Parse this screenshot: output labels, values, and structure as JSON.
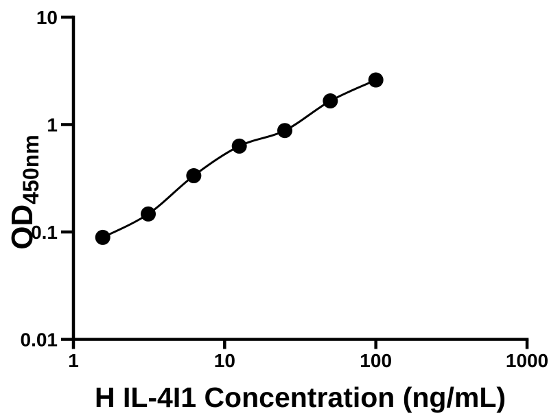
{
  "figure": {
    "description": "ELISA standard curve scatter plot with fitted line",
    "background": "#ffffff"
  },
  "chart_data": {
    "type": "scatter",
    "x": [
      1.5625,
      3.125,
      6.25,
      12.5,
      25,
      50,
      100
    ],
    "y": [
      0.089,
      0.147,
      0.334,
      0.63,
      0.88,
      1.66,
      2.6
    ],
    "xlabel": "H IL-4I1 Concentration (ng/mL)",
    "ylabel": "OD",
    "ylabel_sub": "450nm",
    "xscale": "log",
    "yscale": "log",
    "xlim": [
      1,
      1000
    ],
    "ylim": [
      0.01,
      10
    ],
    "xticks": [
      1,
      10,
      100,
      1000
    ],
    "xtick_labels": [
      "1",
      "10",
      "100",
      "1000"
    ],
    "yticks": [
      0.01,
      0.1,
      1,
      10
    ],
    "ytick_labels": [
      "0.01",
      "0.1",
      "1",
      "10"
    ],
    "grid": false,
    "legend": false,
    "curve": "smooth-through-points",
    "colors": {
      "marker": "#000000",
      "line": "#000000",
      "axis": "#000000",
      "text": "#000000",
      "background": "#ffffff"
    }
  }
}
